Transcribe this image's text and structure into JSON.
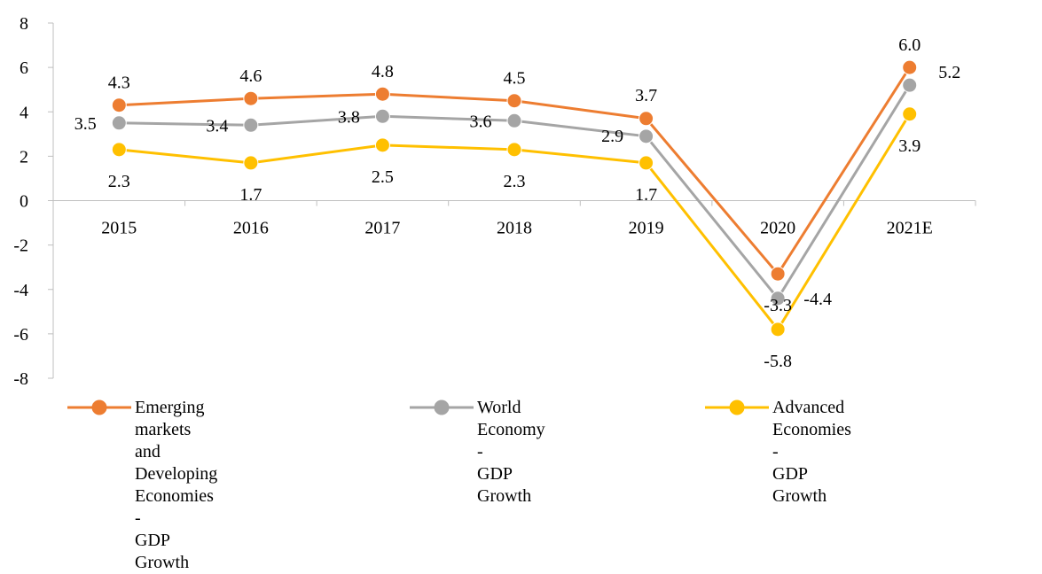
{
  "chart_data": {
    "type": "line",
    "categories": [
      "2015",
      "2016",
      "2017",
      "2018",
      "2019",
      "2020",
      "2021E"
    ],
    "ylim": [
      -8,
      8
    ],
    "yticks": [
      "8",
      "6",
      "4",
      "2",
      "0",
      "-2",
      "-4",
      "-6",
      "-8"
    ],
    "grid": false,
    "legend_position": "bottom",
    "series": [
      {
        "name": "Emerging markets and\nDeveloping Economies -\nGDP Growth",
        "color": "#ED7D31",
        "values": [
          4.3,
          4.6,
          4.8,
          4.5,
          3.7,
          -3.3,
          6.0
        ],
        "labels": [
          "4.3",
          "4.6",
          "4.8",
          "4.5",
          "3.7",
          "-3.3",
          "6.0"
        ]
      },
      {
        "name": "World Economy -\nGDP Growth",
        "color": "#A5A5A5",
        "values": [
          3.5,
          3.4,
          3.8,
          3.6,
          2.9,
          -4.4,
          5.2
        ],
        "labels": [
          "3.5",
          "3.4",
          "3.8",
          "3.6",
          "2.9",
          "-4.4",
          "5.2"
        ]
      },
      {
        "name": "Advanced Economies -\nGDP Growth",
        "color": "#FFC000",
        "values": [
          2.3,
          1.7,
          2.5,
          2.3,
          1.7,
          -5.8,
          3.9
        ],
        "labels": [
          "2.3",
          "1.7",
          "2.5",
          "2.3",
          "1.7",
          "-5.8",
          "3.9"
        ]
      }
    ]
  }
}
